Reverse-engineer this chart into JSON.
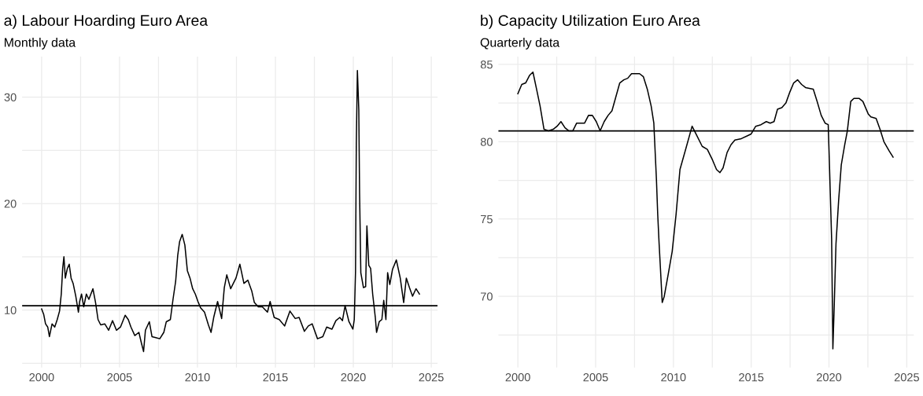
{
  "chart_data": [
    {
      "type": "line",
      "title": "a) Labour Hoarding Euro Area",
      "subtitle": "Monthly data",
      "grid": true,
      "xlim": [
        1998.75,
        2025.4
      ],
      "ylim": [
        4.6,
        33.8
      ],
      "xticks": [
        2000,
        {
          "value": 2002.5,
          "label": null
        },
        2005,
        {
          "value": 2007.5,
          "label": null
        },
        2010,
        {
          "value": 2012.5,
          "label": null
        },
        2015,
        {
          "value": 2017.5,
          "label": null
        },
        2020,
        {
          "value": 2022.5,
          "label": null
        },
        2025
      ],
      "yticks": [
        {
          "value": 5,
          "label": null
        },
        10,
        {
          "value": 15,
          "label": null
        },
        20,
        {
          "value": 25,
          "label": null
        },
        30
      ],
      "ref_lines": [
        {
          "axis": "y",
          "value": 10.4,
          "color": "#000000"
        }
      ],
      "series": [
        {
          "color": "#000000",
          "x": [
            2000.0,
            2000.13,
            2000.25,
            2000.39,
            2000.5,
            2000.67,
            2000.84,
            2001.0,
            2001.15,
            2001.26,
            2001.35,
            2001.43,
            2001.52,
            2001.65,
            2001.77,
            2001.89,
            2002.02,
            2002.19,
            2002.36,
            2002.44,
            2002.56,
            2002.7,
            2002.87,
            2003.03,
            2003.29,
            2003.46,
            2003.62,
            2003.79,
            2004.05,
            2004.3,
            2004.55,
            2004.8,
            2005.06,
            2005.36,
            2005.56,
            2005.73,
            2005.98,
            2006.24,
            2006.4,
            2006.54,
            2006.66,
            2006.91,
            2007.08,
            2007.33,
            2007.58,
            2007.84,
            2008.0,
            2008.26,
            2008.43,
            2008.6,
            2008.73,
            2008.85,
            2009.02,
            2009.19,
            2009.35,
            2009.52,
            2009.69,
            2009.86,
            2010.03,
            2010.2,
            2010.45,
            2010.7,
            2010.87,
            2011.04,
            2011.29,
            2011.55,
            2011.72,
            2011.88,
            2012.13,
            2012.47,
            2012.72,
            2012.98,
            2013.23,
            2013.48,
            2013.65,
            2013.9,
            2014.16,
            2014.49,
            2014.66,
            2014.92,
            2015.25,
            2015.59,
            2015.93,
            2016.27,
            2016.52,
            2016.86,
            2017.11,
            2017.36,
            2017.7,
            2018.04,
            2018.29,
            2018.63,
            2018.88,
            2019.13,
            2019.3,
            2019.47,
            2019.72,
            2019.97,
            2020.06,
            2020.14,
            2020.19,
            2020.26,
            2020.35,
            2020.4,
            2020.48,
            2020.65,
            2020.79,
            2020.87,
            2020.99,
            2021.11,
            2021.24,
            2021.41,
            2021.49,
            2021.66,
            2021.83,
            2021.95,
            2022.09,
            2022.2,
            2022.34,
            2022.51,
            2022.76,
            2023.01,
            2023.23,
            2023.4,
            2023.6,
            2023.8,
            2024.02,
            2024.24
          ],
          "values": [
            10.1,
            9.6,
            8.7,
            8.4,
            7.5,
            8.7,
            8.4,
            9.1,
            9.9,
            11.5,
            13.9,
            15.0,
            13.0,
            13.9,
            14.3,
            13.0,
            12.5,
            11.3,
            9.8,
            10.8,
            11.5,
            10.3,
            11.5,
            11.0,
            12.0,
            10.7,
            9.1,
            8.6,
            8.7,
            8.1,
            9.0,
            8.1,
            8.4,
            9.5,
            9.1,
            8.4,
            7.6,
            7.9,
            6.9,
            6.1,
            8.1,
            8.9,
            7.5,
            7.4,
            7.3,
            7.9,
            8.9,
            9.1,
            11.0,
            12.7,
            15.1,
            16.4,
            17.1,
            16.1,
            13.7,
            13.0,
            12.0,
            11.5,
            10.8,
            10.2,
            9.8,
            8.6,
            7.9,
            9.3,
            10.8,
            9.2,
            12.1,
            13.3,
            12.0,
            13.0,
            14.3,
            12.5,
            12.8,
            11.8,
            10.7,
            10.3,
            10.3,
            9.8,
            10.8,
            9.3,
            9.1,
            8.5,
            9.9,
            9.2,
            9.3,
            8.0,
            8.5,
            8.7,
            7.3,
            7.5,
            8.4,
            8.2,
            9.0,
            9.3,
            9.0,
            10.4,
            8.9,
            8.2,
            9.1,
            13.6,
            25.6,
            32.5,
            28.8,
            21.0,
            13.5,
            12.1,
            12.2,
            17.9,
            14.2,
            13.9,
            11.5,
            9.3,
            7.9,
            8.9,
            9.1,
            10.9,
            9.1,
            13.5,
            12.4,
            13.8,
            14.7,
            13.0,
            10.7,
            13.0,
            12.1,
            11.3,
            12.0,
            11.5
          ]
        }
      ]
    },
    {
      "type": "line",
      "title": "b) Capacity Utilization Euro Area",
      "subtitle": "Quarterly data",
      "grid": true,
      "xlim": [
        1998.75,
        2025.45
      ],
      "ylim": [
        65.4,
        85.5
      ],
      "xticks": [
        2000,
        {
          "value": 2002.5,
          "label": null
        },
        2005,
        {
          "value": 2007.5,
          "label": null
        },
        2010,
        {
          "value": 2012.5,
          "label": null
        },
        2015,
        {
          "value": 2017.5,
          "label": null
        },
        2020,
        {
          "value": 2022.5,
          "label": null
        },
        2025
      ],
      "yticks": [
        {
          "value": 67.5,
          "label": null
        },
        70,
        {
          "value": 72.5,
          "label": null
        },
        75,
        {
          "value": 77.5,
          "label": null
        },
        80,
        {
          "value": 82.5,
          "label": null
        },
        85
      ],
      "ref_lines": [
        {
          "axis": "y",
          "value": 80.7,
          "color": "#000000"
        }
      ],
      "series": [
        {
          "color": "#000000",
          "x": [
            2000.0,
            2000.25,
            2000.5,
            2000.76,
            2000.97,
            2001.18,
            2001.43,
            2001.68,
            2001.97,
            2002.27,
            2002.52,
            2002.77,
            2003.03,
            2003.28,
            2003.53,
            2003.78,
            2004.29,
            2004.54,
            2004.79,
            2005.04,
            2005.29,
            2005.55,
            2005.8,
            2006.05,
            2006.3,
            2006.55,
            2006.81,
            2007.06,
            2007.31,
            2007.82,
            2008.07,
            2008.32,
            2008.57,
            2008.74,
            2008.91,
            2008.99,
            2009.08,
            2009.16,
            2009.28,
            2009.41,
            2009.66,
            2009.92,
            2010.17,
            2010.42,
            2010.84,
            2011.2,
            2011.5,
            2011.85,
            2012.18,
            2012.52,
            2012.77,
            2012.99,
            2013.19,
            2013.45,
            2013.7,
            2013.95,
            2014.37,
            2014.79,
            2015.0,
            2015.29,
            2015.63,
            2015.97,
            2016.22,
            2016.47,
            2016.69,
            2016.97,
            2017.23,
            2017.48,
            2017.73,
            2017.98,
            2018.24,
            2018.49,
            2018.99,
            2019.24,
            2019.5,
            2019.75,
            2019.95,
            2020.03,
            2020.17,
            2020.25,
            2020.34,
            2020.45,
            2020.62,
            2020.79,
            2021.01,
            2021.18,
            2021.4,
            2021.6,
            2021.93,
            2022.18,
            2022.52,
            2022.69,
            2023.03,
            2023.28,
            2023.53,
            2023.87,
            2024.12
          ],
          "values": [
            83.1,
            83.7,
            83.8,
            84.3,
            84.5,
            83.5,
            82.3,
            80.8,
            80.7,
            80.8,
            81.0,
            81.3,
            80.9,
            80.7,
            80.7,
            81.2,
            81.2,
            81.7,
            81.7,
            81.3,
            80.7,
            81.3,
            81.7,
            82.0,
            82.9,
            83.8,
            84.0,
            84.1,
            84.4,
            84.4,
            84.2,
            83.4,
            82.3,
            81.2,
            77.5,
            75.3,
            73.4,
            71.9,
            69.6,
            70.0,
            71.4,
            72.9,
            75.3,
            78.2,
            79.7,
            81.0,
            80.4,
            79.7,
            79.5,
            78.8,
            78.2,
            78.0,
            78.3,
            79.3,
            79.8,
            80.1,
            80.2,
            80.4,
            80.5,
            81.0,
            81.1,
            81.3,
            81.2,
            81.3,
            82.1,
            82.2,
            82.5,
            83.2,
            83.8,
            84.0,
            83.7,
            83.5,
            83.4,
            82.6,
            81.7,
            81.2,
            81.1,
            78.5,
            73.7,
            66.6,
            69.5,
            73.4,
            76.2,
            78.5,
            79.8,
            80.7,
            82.6,
            82.8,
            82.8,
            82.6,
            81.8,
            81.6,
            81.5,
            80.8,
            80.0,
            79.4,
            79.0
          ]
        }
      ]
    }
  ]
}
